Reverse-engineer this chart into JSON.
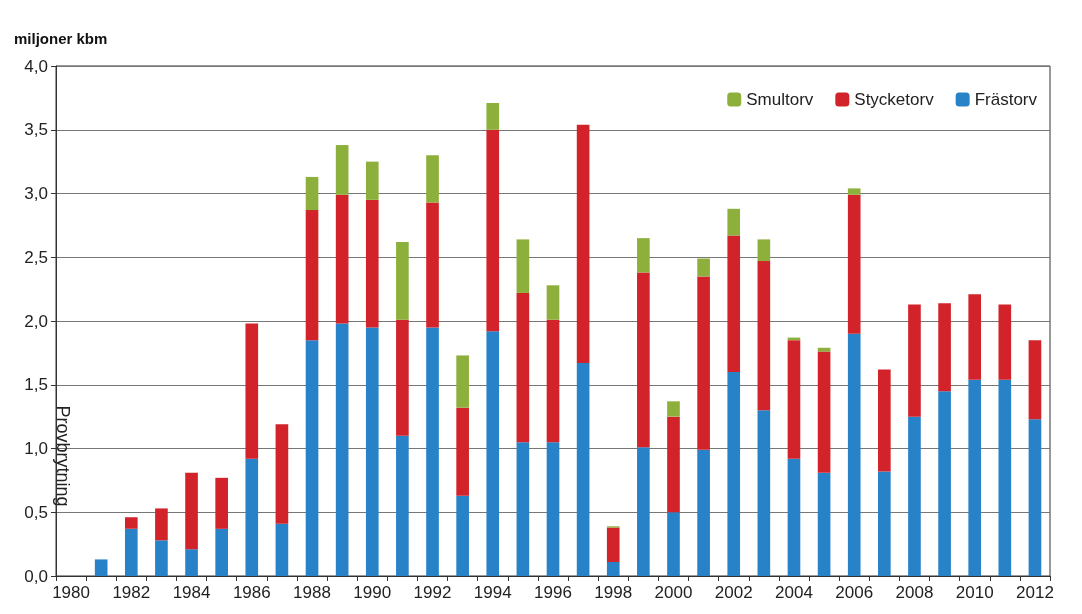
{
  "chart_data": {
    "type": "bar",
    "stacked": true,
    "ylabel": "miljoner kbm",
    "categories": [
      "1980",
      null,
      "1982",
      null,
      "1984",
      null,
      "1986",
      null,
      "1988",
      null,
      "1990",
      null,
      "1992",
      null,
      "1994",
      null,
      "1996",
      null,
      "1998",
      null,
      "2000",
      null,
      "2002",
      null,
      "2004",
      null,
      "2006",
      null,
      "2008",
      null,
      "2010",
      null,
      "2012"
    ],
    "series": [
      {
        "name": "Frästorv",
        "color": "#2882c8",
        "values": [
          null,
          0.13,
          0.37,
          0.28,
          0.21,
          0.37,
          0.92,
          0.41,
          1.85,
          1.98,
          1.95,
          1.1,
          1.95,
          0.63,
          1.92,
          1.05,
          1.05,
          1.67,
          0.11,
          1.01,
          0.5,
          0.99,
          1.6,
          1.3,
          0.92,
          0.81,
          1.9,
          0.82,
          1.25,
          1.45,
          1.54,
          1.54,
          1.23
        ]
      },
      {
        "name": "Stycketorv",
        "color": "#d2232a",
        "values": [
          null,
          null,
          0.09,
          0.25,
          0.6,
          0.4,
          1.06,
          0.78,
          1.02,
          1.01,
          1.0,
          0.91,
          0.98,
          0.69,
          1.58,
          1.17,
          0.96,
          1.87,
          0.27,
          1.37,
          0.75,
          1.36,
          1.07,
          1.17,
          0.93,
          0.95,
          1.09,
          0.8,
          0.88,
          0.69,
          0.67,
          0.59,
          0.62
        ]
      },
      {
        "name": "Smultorv",
        "color": "#8db03c",
        "values": [
          null,
          null,
          null,
          null,
          null,
          null,
          null,
          null,
          0.26,
          0.39,
          0.3,
          0.61,
          0.37,
          0.41,
          0.21,
          0.42,
          0.27,
          null,
          0.01,
          0.27,
          0.12,
          0.14,
          0.21,
          0.17,
          0.02,
          0.03,
          0.05,
          null,
          null,
          null,
          null,
          null,
          null
        ]
      }
    ],
    "ylim": [
      0,
      4
    ],
    "yticks": [
      {
        "value": 0,
        "label": "0,0"
      },
      {
        "value": 0.5,
        "label": "0,5"
      },
      {
        "value": 1,
        "label": "1,0"
      },
      {
        "value": 1.5,
        "label": "1,5"
      },
      {
        "value": 2,
        "label": "2,0"
      },
      {
        "value": 2.5,
        "label": "2,5"
      },
      {
        "value": 3,
        "label": "3,0"
      },
      {
        "value": 3.5,
        "label": "3,5"
      },
      {
        "value": 4,
        "label": "4,0"
      }
    ],
    "grid": "y",
    "legend": "top right",
    "annotations": [
      "Provbrytning"
    ]
  }
}
